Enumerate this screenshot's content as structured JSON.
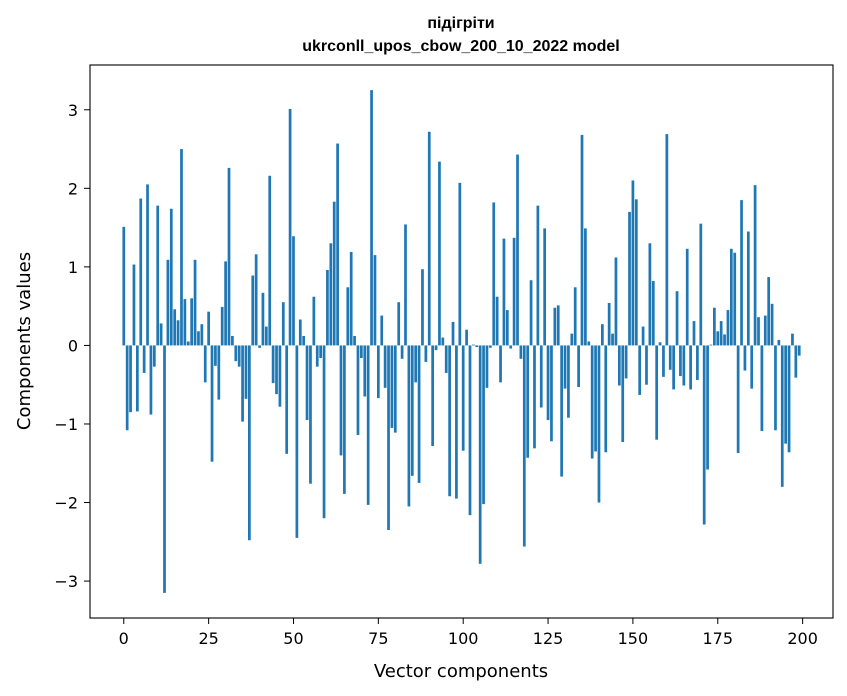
{
  "chart_data": {
    "type": "bar",
    "title_line1": "підігріти",
    "title_line2": "ukrconll_upos_cbow_200_10_2022 model",
    "xlabel": "Vector components",
    "ylabel": "Components values",
    "xlim": [
      -9.95,
      208.95
    ],
    "ylim": [
      -3.47,
      3.57
    ],
    "xticks": [
      0,
      25,
      50,
      75,
      100,
      125,
      150,
      175,
      200
    ],
    "yticks": [
      -3,
      -2,
      -1,
      0,
      1,
      2,
      3
    ],
    "ytick_labels": [
      "−3",
      "−2",
      "−1",
      "0",
      "1",
      "2",
      "3"
    ],
    "bar_color": "#1f77b4",
    "grid": false,
    "x": [
      0,
      1,
      2,
      3,
      4,
      5,
      6,
      7,
      8,
      9,
      10,
      11,
      12,
      13,
      14,
      15,
      16,
      17,
      18,
      19,
      20,
      21,
      22,
      23,
      24,
      25,
      26,
      27,
      28,
      29,
      30,
      31,
      32,
      33,
      34,
      35,
      36,
      37,
      38,
      39,
      40,
      41,
      42,
      43,
      44,
      45,
      46,
      47,
      48,
      49,
      50,
      51,
      52,
      53,
      54,
      55,
      56,
      57,
      58,
      59,
      60,
      61,
      62,
      63,
      64,
      65,
      66,
      67,
      68,
      69,
      70,
      71,
      72,
      73,
      74,
      75,
      76,
      77,
      78,
      79,
      80,
      81,
      82,
      83,
      84,
      85,
      86,
      87,
      88,
      89,
      90,
      91,
      92,
      93,
      94,
      95,
      96,
      97,
      98,
      99,
      100,
      101,
      102,
      103,
      104,
      105,
      106,
      107,
      108,
      109,
      110,
      111,
      112,
      113,
      114,
      115,
      116,
      117,
      118,
      119,
      120,
      121,
      122,
      123,
      124,
      125,
      126,
      127,
      128,
      129,
      130,
      131,
      132,
      133,
      134,
      135,
      136,
      137,
      138,
      139,
      140,
      141,
      142,
      143,
      144,
      145,
      146,
      147,
      148,
      149,
      150,
      151,
      152,
      153,
      154,
      155,
      156,
      157,
      158,
      159,
      160,
      161,
      162,
      163,
      164,
      165,
      166,
      167,
      168,
      169,
      170,
      171,
      172,
      173,
      174,
      175,
      176,
      177,
      178,
      179,
      180,
      181,
      182,
      183,
      184,
      185,
      186,
      187,
      188,
      189,
      190,
      191,
      192,
      193,
      194,
      195,
      196,
      197,
      198,
      199
    ],
    "values": [
      1.51,
      -1.08,
      -0.85,
      1.03,
      -0.84,
      1.87,
      -0.35,
      2.05,
      -0.88,
      -0.27,
      1.78,
      0.28,
      -3.15,
      1.09,
      1.74,
      0.46,
      0.32,
      2.5,
      0.59,
      0.05,
      0.6,
      1.09,
      0.18,
      0.27,
      -0.47,
      0.43,
      -1.48,
      -0.26,
      -0.69,
      0.49,
      1.07,
      2.26,
      0.12,
      -0.2,
      -0.27,
      -0.97,
      -0.68,
      -2.48,
      0.89,
      1.16,
      -0.03,
      0.67,
      0.24,
      2.16,
      -0.48,
      -0.62,
      -0.78,
      0.55,
      -1.38,
      3.01,
      1.39,
      -2.45,
      0.33,
      0.12,
      -0.95,
      -1.76,
      0.62,
      -0.27,
      -0.16,
      -2.2,
      0.96,
      1.3,
      1.83,
      2.57,
      -1.4,
      -1.89,
      0.74,
      1.19,
      0.12,
      -1.14,
      -0.16,
      -0.65,
      -2.03,
      3.25,
      1.15,
      -0.67,
      0.38,
      -0.54,
      -2.35,
      -1.05,
      -1.11,
      0.55,
      -0.17,
      1.54,
      -2.05,
      -1.66,
      -0.47,
      -1.75,
      0.97,
      -0.21,
      2.72,
      -1.28,
      -0.06,
      2.34,
      0.1,
      -0.35,
      -1.92,
      0.3,
      -1.95,
      2.07,
      -1.34,
      0.2,
      -2.16,
      0.01,
      -0.02,
      -2.78,
      -2.02,
      -0.54,
      -0.03,
      1.82,
      0.62,
      -0.47,
      1.36,
      0.45,
      -0.04,
      1.37,
      2.43,
      -0.17,
      -2.56,
      -1.43,
      0.83,
      -1.31,
      1.78,
      -0.79,
      1.49,
      -0.95,
      -1.22,
      0.48,
      0.51,
      -1.67,
      -0.55,
      -0.92,
      0.15,
      0.74,
      -0.53,
      2.68,
      1.49,
      0.05,
      -1.44,
      -1.35,
      -2.0,
      0.27,
      -1.36,
      0.54,
      0.15,
      1.12,
      -0.51,
      -1.23,
      -0.42,
      1.7,
      2.1,
      1.86,
      -0.63,
      0.24,
      -0.5,
      1.3,
      0.82,
      -1.2,
      0.04,
      -0.4,
      2.69,
      -0.31,
      -0.56,
      0.69,
      -0.39,
      -0.51,
      1.23,
      -0.56,
      0.31,
      -0.44,
      1.55,
      -2.28,
      -1.58,
      0.01,
      0.48,
      0.18,
      0.31,
      0.14,
      0.45,
      1.23,
      1.18,
      -1.37,
      1.85,
      -0.32,
      1.45,
      -0.55,
      2.04,
      0.36,
      -1.09,
      0.38,
      0.87,
      0.53,
      -1.08,
      0.07,
      -1.8,
      -1.25,
      -1.36,
      0.15,
      -0.41,
      -0.13
    ]
  }
}
